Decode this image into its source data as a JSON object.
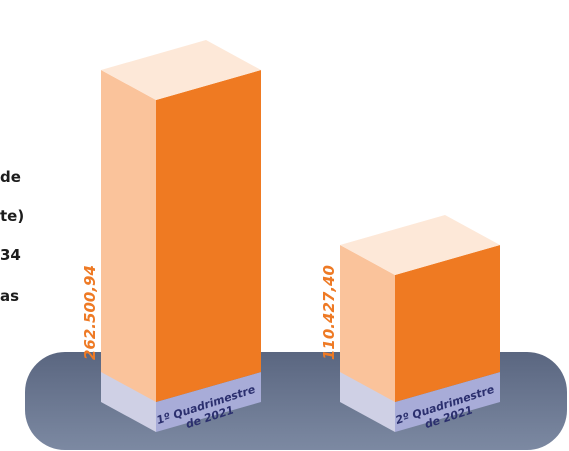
{
  "side_text": [
    "de",
    "te)",
    "34",
    "as"
  ],
  "chart_data": {
    "type": "bar",
    "categories": [
      "1º Quadrimestre de 2021",
      "2º Quadrimestre de 2021"
    ],
    "category_lines": [
      [
        "1º Quadrimestre",
        "de 2021"
      ],
      [
        "2º Quadrimestre",
        "de 2021"
      ]
    ],
    "values": [
      262500.94,
      110427.4
    ],
    "value_labels": [
      "262.500,94",
      "110.427,40"
    ],
    "ylim": [
      0,
      262500.94
    ]
  }
}
